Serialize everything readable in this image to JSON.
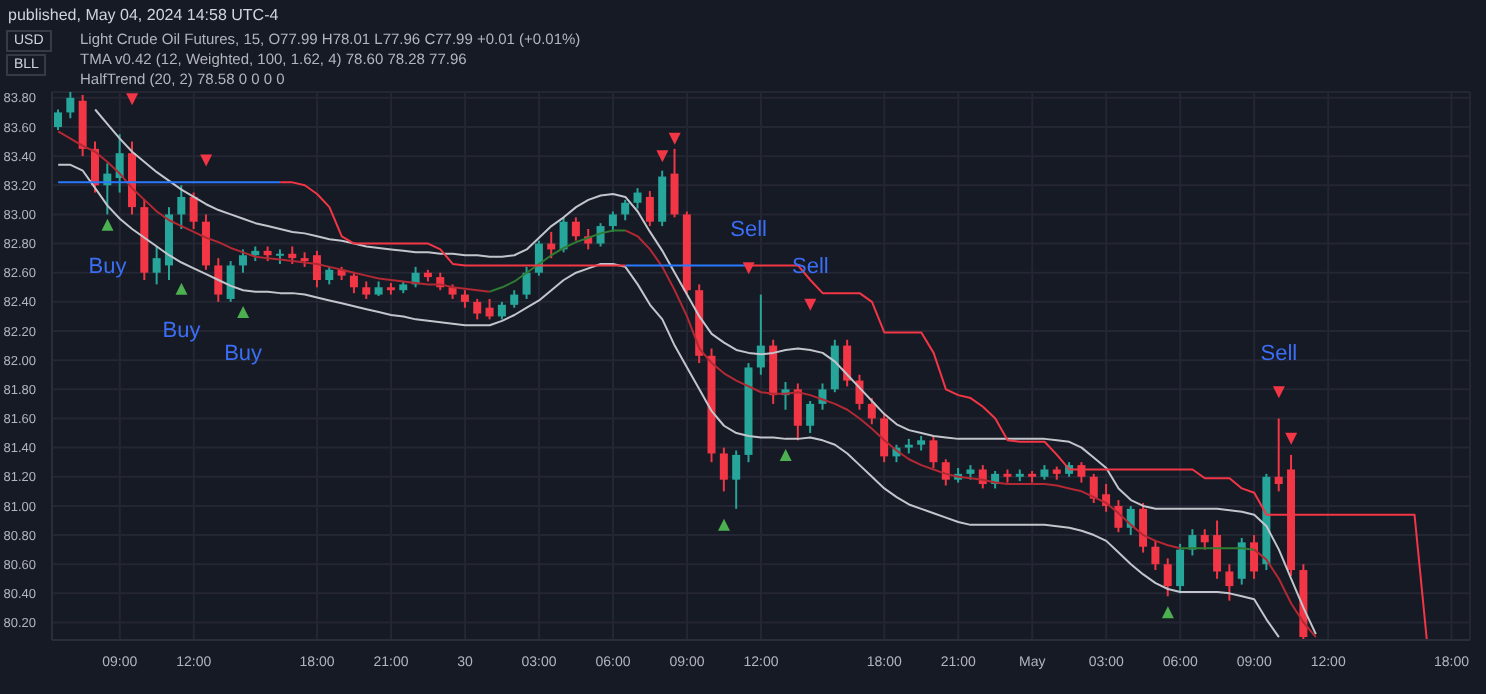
{
  "chart_data": {
    "type": "candlestick",
    "title": "Light Crude Oil Futures, 15, O77.99 H78.01 L77.96 C77.99 +0.01 (+0.01%)",
    "annotations": [
      "published, May 04, 2024 14:58 UTC-4",
      "USD",
      "BLL",
      "TMA v0.42 (12, Weighted, 100, 1.62, 4) 78.60 78.28 77.96",
      "HalfTrend (20, 2) 78.58 0 0 0 0"
    ],
    "categories": [
      null,
      null,
      null,
      null,
      null,
      "09:00",
      null,
      null,
      null,
      null,
      null,
      "12:00",
      null,
      null,
      null,
      null,
      null,
      null,
      null,
      null,
      null,
      "18:00",
      null,
      null,
      null,
      null,
      null,
      "21:00",
      null,
      null,
      null,
      null,
      null,
      "30",
      null,
      null,
      null,
      null,
      null,
      "03:00",
      null,
      null,
      null,
      null,
      null,
      "06:00",
      null,
      null,
      null,
      null,
      null,
      "09:00",
      null,
      null,
      null,
      null,
      null,
      "12:00",
      null,
      null,
      null,
      null,
      null,
      null,
      null,
      null,
      null,
      "18:00",
      null,
      null,
      null,
      null,
      null,
      "21:00",
      null,
      null,
      null,
      null,
      null,
      "May",
      null,
      null,
      null,
      null,
      null,
      "03:00",
      null,
      null,
      null,
      null,
      null,
      "06:00",
      null,
      null,
      null,
      null,
      null,
      "09:00",
      null,
      null,
      null,
      null,
      null,
      "12:00",
      null,
      null,
      null,
      null,
      null,
      null,
      null,
      null,
      null,
      "18:00",
      null
    ],
    "ohlc": [
      [
        83.6,
        83.72,
        83.58,
        83.7
      ],
      [
        83.7,
        83.84,
        83.66,
        83.8
      ],
      [
        83.78,
        83.82,
        83.4,
        83.45
      ],
      [
        83.45,
        83.5,
        83.15,
        83.2
      ],
      [
        83.2,
        83.35,
        83.0,
        83.28
      ],
      [
        83.25,
        83.55,
        83.15,
        83.42
      ],
      [
        83.42,
        83.5,
        83.0,
        83.05
      ],
      [
        83.05,
        83.1,
        82.55,
        82.6
      ],
      [
        82.6,
        82.78,
        82.52,
        82.7
      ],
      [
        82.65,
        83.05,
        82.55,
        83.0
      ],
      [
        83.0,
        83.2,
        82.9,
        83.12
      ],
      [
        83.12,
        83.15,
        82.9,
        82.95
      ],
      [
        82.95,
        83.0,
        82.62,
        82.65
      ],
      [
        82.65,
        82.7,
        82.4,
        82.45
      ],
      [
        82.42,
        82.68,
        82.4,
        82.65
      ],
      [
        82.65,
        82.76,
        82.6,
        82.72
      ],
      [
        82.72,
        82.78,
        82.68,
        82.75
      ],
      [
        82.75,
        82.78,
        82.68,
        82.72
      ],
      [
        82.72,
        82.76,
        82.66,
        82.73
      ],
      [
        82.73,
        82.78,
        82.66,
        82.7
      ],
      [
        82.7,
        82.74,
        82.64,
        82.68
      ],
      [
        82.72,
        82.75,
        82.5,
        82.55
      ],
      [
        82.55,
        82.64,
        82.52,
        82.62
      ],
      [
        82.62,
        82.64,
        82.55,
        82.58
      ],
      [
        82.58,
        82.6,
        82.46,
        82.5
      ],
      [
        82.5,
        82.54,
        82.42,
        82.45
      ],
      [
        82.45,
        82.54,
        82.44,
        82.5
      ],
      [
        82.5,
        82.53,
        82.45,
        82.48
      ],
      [
        82.48,
        82.54,
        82.46,
        82.52
      ],
      [
        82.52,
        82.64,
        82.5,
        82.6
      ],
      [
        82.6,
        82.62,
        82.54,
        82.57
      ],
      [
        82.57,
        82.6,
        82.48,
        82.5
      ],
      [
        82.5,
        82.52,
        82.42,
        82.45
      ],
      [
        82.45,
        82.48,
        82.36,
        82.4
      ],
      [
        82.4,
        82.42,
        82.28,
        82.32
      ],
      [
        82.36,
        82.42,
        82.28,
        82.3
      ],
      [
        82.3,
        82.4,
        82.28,
        82.38
      ],
      [
        82.38,
        82.48,
        82.36,
        82.45
      ],
      [
        82.45,
        82.64,
        82.42,
        82.6
      ],
      [
        82.6,
        82.82,
        82.58,
        82.8
      ],
      [
        82.8,
        82.88,
        82.7,
        82.76
      ],
      [
        82.76,
        82.98,
        82.74,
        82.95
      ],
      [
        82.95,
        82.98,
        82.82,
        82.85
      ],
      [
        82.85,
        82.9,
        82.76,
        82.8
      ],
      [
        82.8,
        82.94,
        82.78,
        82.92
      ],
      [
        82.92,
        83.02,
        82.88,
        83.0
      ],
      [
        83.0,
        83.1,
        82.96,
        83.08
      ],
      [
        83.08,
        83.18,
        83.04,
        83.15
      ],
      [
        83.12,
        83.16,
        82.92,
        82.95
      ],
      [
        82.95,
        83.3,
        82.92,
        83.26
      ],
      [
        83.28,
        83.45,
        82.98,
        83.0
      ],
      [
        83.0,
        83.02,
        82.45,
        82.48
      ],
      [
        82.48,
        82.52,
        81.98,
        82.03
      ],
      [
        82.03,
        82.08,
        81.3,
        81.36
      ],
      [
        81.36,
        81.4,
        81.1,
        81.18
      ],
      [
        81.18,
        81.38,
        80.98,
        81.35
      ],
      [
        81.35,
        81.98,
        81.3,
        81.95
      ],
      [
        81.95,
        82.45,
        81.9,
        82.1
      ],
      [
        82.1,
        82.14,
        81.7,
        81.76
      ],
      [
        81.76,
        81.85,
        81.66,
        81.8
      ],
      [
        81.8,
        81.84,
        81.45,
        81.55
      ],
      [
        81.55,
        81.72,
        81.5,
        81.7
      ],
      [
        81.7,
        81.84,
        81.66,
        81.8
      ],
      [
        81.8,
        82.14,
        81.78,
        82.1
      ],
      [
        82.1,
        82.14,
        81.82,
        81.86
      ],
      [
        81.86,
        81.9,
        81.66,
        81.7
      ],
      [
        81.7,
        81.74,
        81.56,
        81.6
      ],
      [
        81.6,
        81.64,
        81.3,
        81.34
      ],
      [
        81.34,
        81.42,
        81.3,
        81.4
      ],
      [
        81.4,
        81.46,
        81.36,
        81.42
      ],
      [
        81.42,
        81.48,
        81.38,
        81.45
      ],
      [
        81.45,
        81.48,
        81.26,
        81.3
      ],
      [
        81.3,
        81.32,
        81.14,
        81.18
      ],
      [
        81.18,
        81.26,
        81.16,
        81.22
      ],
      [
        81.22,
        81.28,
        81.18,
        81.25
      ],
      [
        81.25,
        81.28,
        81.12,
        81.15
      ],
      [
        81.15,
        81.24,
        81.12,
        81.22
      ],
      [
        81.22,
        81.25,
        81.16,
        81.2
      ],
      [
        81.2,
        81.25,
        81.17,
        81.22
      ],
      [
        81.22,
        81.24,
        81.16,
        81.2
      ],
      [
        81.2,
        81.28,
        81.18,
        81.25
      ],
      [
        81.25,
        81.27,
        81.18,
        81.22
      ],
      [
        81.22,
        81.3,
        81.2,
        81.28
      ],
      [
        81.28,
        81.3,
        81.16,
        81.2
      ],
      [
        81.2,
        81.22,
        81.02,
        81.05
      ],
      [
        81.08,
        81.15,
        80.96,
        81.0
      ],
      [
        81.0,
        81.04,
        80.82,
        80.85
      ],
      [
        80.85,
        81.0,
        80.8,
        80.98
      ],
      [
        80.98,
        81.02,
        80.68,
        80.72
      ],
      [
        80.72,
        80.76,
        80.56,
        80.6
      ],
      [
        80.6,
        80.64,
        80.38,
        80.45
      ],
      [
        80.45,
        80.74,
        80.4,
        80.7
      ],
      [
        80.7,
        80.84,
        80.66,
        80.8
      ],
      [
        80.8,
        80.84,
        80.7,
        80.75
      ],
      [
        80.8,
        80.9,
        80.5,
        80.55
      ],
      [
        80.55,
        80.6,
        80.35,
        80.45
      ],
      [
        80.5,
        80.78,
        80.46,
        80.75
      ],
      [
        80.75,
        80.8,
        80.5,
        80.55
      ],
      [
        80.6,
        81.22,
        80.56,
        81.2
      ],
      [
        81.2,
        81.6,
        81.1,
        81.15
      ],
      [
        81.25,
        81.35,
        80.52,
        80.56
      ],
      [
        80.56,
        80.6,
        80.08,
        80.1
      ],
      null,
      null,
      null,
      null,
      null,
      null,
      null,
      null,
      null,
      null,
      null,
      null,
      null
    ],
    "ylim": [
      80.08,
      83.84
    ],
    "yticks": [
      {
        "value": 80.2,
        "label": "80.20"
      },
      {
        "value": 80.4,
        "label": "80.40"
      },
      {
        "value": 80.6,
        "label": "80.60"
      },
      {
        "value": 80.8,
        "label": "80.80"
      },
      {
        "value": 81.0,
        "label": "81.00"
      },
      {
        "value": 81.2,
        "label": "81.20"
      },
      {
        "value": 81.4,
        "label": "81.40"
      },
      {
        "value": 81.6,
        "label": "81.60"
      },
      {
        "value": 81.8,
        "label": "81.80"
      },
      {
        "value": 82.0,
        "label": "82.00"
      },
      {
        "value": 82.2,
        "label": "82.20"
      },
      {
        "value": 82.4,
        "label": "82.40"
      },
      {
        "value": 82.6,
        "label": "82.60"
      },
      {
        "value": 82.8,
        "label": "82.80"
      },
      {
        "value": 83.0,
        "label": "83.00"
      },
      {
        "value": 83.2,
        "label": "83.20"
      },
      {
        "value": 83.4,
        "label": "83.40"
      },
      {
        "value": 83.6,
        "label": "83.60"
      },
      {
        "value": 83.8,
        "label": "83.80"
      }
    ],
    "grid": true,
    "series": [
      {
        "type": "line",
        "color": "#b22833",
        "values": [
          83.57,
          83.52,
          83.47,
          83.43,
          83.36,
          83.28,
          83.18,
          83.1,
          83.02,
          82.96,
          82.92,
          82.88,
          82.84,
          82.81,
          82.77,
          82.74,
          82.71,
          82.7,
          82.69,
          82.68,
          82.67,
          82.66,
          82.64,
          82.62,
          82.6,
          82.58,
          82.56,
          82.55,
          82.54,
          82.53,
          82.52,
          82.52,
          82.5,
          82.49,
          82.48,
          82.47,
          null,
          null,
          null,
          null,
          null,
          null,
          null,
          null,
          null,
          null,
          82.89,
          82.85,
          82.76,
          82.64,
          82.48,
          82.3,
          82.08,
          81.98,
          81.91,
          81.86,
          81.82,
          81.78,
          81.77,
          81.77,
          81.78,
          81.76,
          81.73,
          81.7,
          81.66,
          81.6,
          81.53,
          81.45,
          81.38,
          81.32,
          81.28,
          81.25,
          81.22,
          81.2,
          81.19,
          81.18,
          81.16,
          81.15,
          81.15,
          81.15,
          81.15,
          81.14,
          81.12,
          81.1,
          81.06,
          81.02,
          80.95,
          80.87,
          80.8,
          80.76,
          80.73,
          80.71,
          null,
          null,
          null,
          null,
          null,
          80.7,
          80.63,
          80.5,
          80.33,
          80.2,
          80.1,
          null,
          null,
          null,
          null,
          null,
          null,
          null,
          null,
          null,
          null,
          null,
          null
        ]
      },
      {
        "type": "line",
        "color": "#2e7d32",
        "values": [
          null,
          null,
          null,
          null,
          null,
          null,
          null,
          null,
          null,
          null,
          null,
          null,
          null,
          null,
          null,
          null,
          null,
          null,
          null,
          null,
          null,
          null,
          null,
          null,
          null,
          null,
          null,
          null,
          null,
          null,
          null,
          null,
          null,
          null,
          null,
          82.47,
          82.5,
          82.54,
          82.6,
          82.66,
          82.72,
          82.77,
          82.81,
          82.84,
          82.87,
          82.89,
          82.89,
          null,
          null,
          null,
          null,
          null,
          null,
          null,
          null,
          null,
          null,
          null,
          null,
          null,
          null,
          null,
          null,
          null,
          null,
          null,
          null,
          null,
          null,
          null,
          null,
          null,
          null,
          null,
          null,
          null,
          null,
          null,
          null,
          null,
          null,
          null,
          null,
          null,
          null,
          null,
          null,
          null,
          null,
          null,
          null,
          80.71,
          80.71,
          80.71,
          80.71,
          80.71,
          80.71,
          80.7,
          null,
          null,
          null,
          null,
          null,
          null,
          null,
          null,
          null,
          null,
          null,
          null,
          null,
          null,
          null,
          null,
          null
        ]
      },
      {
        "type": "line",
        "color": "#c3c5cc",
        "values": [
          null,
          null,
          null,
          83.72,
          83.62,
          83.52,
          83.43,
          83.36,
          83.29,
          83.23,
          83.17,
          83.12,
          83.07,
          83.03,
          83.0,
          82.97,
          82.94,
          82.92,
          82.9,
          82.88,
          82.87,
          82.85,
          82.83,
          82.82,
          82.8,
          82.78,
          82.77,
          82.76,
          82.75,
          82.74,
          82.74,
          82.73,
          82.73,
          82.72,
          82.72,
          82.71,
          82.71,
          82.72,
          82.76,
          82.84,
          82.92,
          82.98,
          83.05,
          83.1,
          83.13,
          83.14,
          83.12,
          83.02,
          82.88,
          82.75,
          82.6,
          82.45,
          82.3,
          82.18,
          82.12,
          82.07,
          82.05,
          82.04,
          82.05,
          82.07,
          82.08,
          82.07,
          82.05,
          81.99,
          81.9,
          81.81,
          81.72,
          81.63,
          81.56,
          81.52,
          81.5,
          81.48,
          81.47,
          81.46,
          81.46,
          81.46,
          81.46,
          81.46,
          81.46,
          81.46,
          81.46,
          81.45,
          81.44,
          81.4,
          81.33,
          81.26,
          81.12,
          81.04,
          81.0,
          80.98,
          80.98,
          80.98,
          80.98,
          80.98,
          80.98,
          80.97,
          80.96,
          80.94,
          80.86,
          80.7,
          80.5,
          80.3,
          80.12,
          null,
          null,
          null,
          null,
          null,
          null,
          null,
          null,
          null,
          null,
          null,
          null
        ]
      },
      {
        "type": "line",
        "color": "#c3c5cc",
        "values": [
          83.34,
          83.34,
          83.3,
          83.18,
          83.06,
          82.97,
          82.9,
          82.84,
          82.78,
          82.72,
          82.67,
          82.63,
          82.59,
          82.55,
          82.51,
          82.48,
          82.47,
          82.47,
          82.46,
          82.46,
          82.45,
          82.43,
          82.41,
          82.39,
          82.37,
          82.35,
          82.33,
          82.31,
          82.3,
          82.28,
          82.27,
          82.26,
          82.25,
          82.24,
          82.24,
          82.24,
          82.27,
          82.31,
          82.36,
          82.41,
          82.48,
          82.55,
          82.6,
          82.63,
          82.66,
          82.66,
          82.64,
          82.52,
          82.38,
          82.28,
          82.1,
          81.95,
          81.8,
          81.65,
          81.55,
          81.5,
          81.48,
          81.47,
          81.47,
          81.46,
          81.46,
          81.47,
          81.45,
          81.42,
          81.36,
          81.28,
          81.2,
          81.12,
          81.06,
          81.01,
          80.98,
          80.95,
          80.92,
          80.89,
          80.87,
          80.87,
          80.87,
          80.87,
          80.87,
          80.87,
          80.87,
          80.86,
          80.85,
          80.83,
          80.8,
          80.76,
          80.68,
          80.6,
          80.53,
          80.47,
          80.43,
          80.41,
          80.41,
          80.41,
          80.41,
          80.4,
          80.38,
          80.36,
          80.22,
          80.1,
          null,
          null,
          null,
          null,
          null,
          null,
          null,
          null,
          null,
          null,
          null,
          null,
          null,
          null,
          null
        ]
      },
      {
        "type": "line",
        "color": "#2979ff",
        "values": [
          83.22,
          83.22,
          83.22,
          83.22,
          83.22,
          83.22,
          83.22,
          83.22,
          83.22,
          83.22,
          83.22,
          83.22,
          83.22,
          83.22,
          83.22,
          83.22,
          83.22,
          83.22,
          83.22,
          null,
          null,
          null,
          null,
          null,
          null,
          null,
          null,
          null,
          null,
          null,
          null,
          null,
          null,
          null,
          null,
          null,
          null,
          null,
          null,
          null,
          null,
          null,
          null,
          null,
          null,
          null,
          82.65,
          82.65,
          82.65,
          82.65,
          82.65,
          82.65,
          82.65,
          82.65,
          82.65,
          82.65,
          82.65,
          null,
          null,
          null,
          null,
          null,
          null,
          null,
          null,
          null,
          null,
          null,
          null,
          null,
          null,
          null,
          null,
          null,
          null,
          null,
          null,
          null,
          null,
          null,
          null,
          null,
          null,
          null,
          null,
          null,
          null,
          null,
          null,
          null,
          null,
          null,
          null,
          null,
          null,
          null,
          null,
          null,
          null,
          null,
          null,
          null,
          null,
          null,
          null,
          null,
          null,
          null,
          null,
          null,
          null,
          null,
          null,
          null,
          null
        ]
      },
      {
        "type": "line",
        "color": "#f23645",
        "values": [
          null,
          null,
          null,
          null,
          null,
          null,
          null,
          null,
          null,
          null,
          null,
          null,
          null,
          null,
          null,
          null,
          null,
          null,
          83.22,
          83.22,
          83.2,
          83.14,
          83.05,
          82.85,
          82.8,
          82.8,
          82.8,
          82.8,
          82.8,
          82.8,
          82.8,
          82.76,
          82.66,
          82.65,
          82.65,
          82.65,
          82.65,
          82.65,
          82.65,
          82.65,
          82.65,
          82.65,
          82.65,
          82.65,
          82.65,
          82.65,
          82.65,
          null,
          null,
          null,
          null,
          null,
          null,
          null,
          null,
          null,
          82.65,
          82.65,
          82.65,
          82.65,
          82.65,
          82.55,
          82.46,
          82.46,
          82.46,
          82.46,
          82.4,
          82.19,
          82.19,
          82.19,
          82.19,
          82.05,
          81.8,
          81.76,
          81.74,
          81.68,
          81.6,
          81.45,
          81.44,
          81.44,
          81.44,
          81.35,
          81.25,
          81.25,
          81.25,
          81.25,
          81.25,
          81.25,
          81.25,
          81.25,
          81.25,
          81.25,
          81.25,
          81.19,
          81.19,
          81.19,
          81.12,
          81.09,
          80.94,
          80.94,
          80.94,
          80.94,
          80.94,
          80.94,
          80.94,
          80.94,
          80.94,
          80.94,
          80.94,
          80.94,
          80.94,
          80.08,
          null,
          null,
          null
        ]
      },
      {
        "type": "scatter",
        "color": "#4caf50",
        "marker": "triangle",
        "values": [
          null,
          null,
          null,
          null,
          82.93,
          null,
          null,
          null,
          null,
          null,
          82.49,
          null,
          null,
          null,
          null,
          82.33,
          null,
          null,
          null,
          null,
          null,
          null,
          null,
          null,
          null,
          null,
          null,
          null,
          null,
          null,
          null,
          null,
          null,
          null,
          null,
          null,
          null,
          null,
          null,
          null,
          null,
          null,
          null,
          null,
          null,
          null,
          null,
          null,
          null,
          null,
          null,
          null,
          null,
          null,
          80.87,
          null,
          null,
          null,
          null,
          81.35,
          null,
          null,
          null,
          null,
          null,
          null,
          null,
          null,
          null,
          null,
          null,
          null,
          null,
          null,
          null,
          null,
          null,
          null,
          null,
          null,
          null,
          null,
          null,
          null,
          null,
          null,
          null,
          null,
          null,
          null,
          80.27,
          null,
          null,
          null,
          null,
          null,
          null,
          null,
          null,
          null,
          null,
          null,
          null,
          null,
          null,
          null,
          null,
          null,
          null,
          null,
          null,
          null,
          null,
          null,
          null
        ],
        "value_labels": [
          null,
          null,
          null,
          null,
          "Buy",
          null,
          null,
          null,
          null,
          null,
          "Buy",
          null,
          null,
          null,
          null,
          "Buy",
          null,
          null,
          null,
          null,
          null,
          null,
          null,
          null,
          null,
          null,
          null,
          null,
          null,
          null,
          null,
          null,
          null,
          null,
          null,
          null,
          null,
          null,
          null,
          null,
          null,
          null,
          null,
          null,
          null,
          null,
          null,
          null,
          null,
          null,
          null,
          null,
          null,
          null,
          null,
          null,
          null,
          null,
          null,
          null,
          null,
          null,
          null,
          null,
          null,
          null,
          null,
          null,
          null,
          null,
          null,
          null,
          null,
          null,
          null,
          null,
          null,
          null,
          null,
          null,
          null,
          null,
          null,
          null,
          null,
          null,
          null,
          null,
          null,
          null,
          null,
          null,
          null,
          null,
          null,
          null,
          null,
          null,
          null,
          null,
          null,
          null,
          null,
          null,
          null,
          null,
          null,
          null,
          null,
          null,
          null,
          null,
          null,
          null,
          null
        ]
      },
      {
        "type": "scatter",
        "color": "#f23645",
        "marker": "triangle",
        "values": [
          null,
          null,
          null,
          null,
          null,
          null,
          83.79,
          null,
          null,
          null,
          null,
          null,
          83.37,
          null,
          null,
          null,
          null,
          null,
          null,
          null,
          null,
          null,
          null,
          null,
          null,
          null,
          null,
          null,
          null,
          null,
          null,
          null,
          null,
          null,
          null,
          null,
          null,
          null,
          null,
          null,
          null,
          null,
          null,
          null,
          null,
          null,
          null,
          null,
          null,
          83.4,
          83.52,
          null,
          null,
          null,
          null,
          null,
          82.63,
          null,
          null,
          null,
          null,
          82.38,
          null,
          null,
          null,
          null,
          null,
          null,
          null,
          null,
          null,
          null,
          null,
          null,
          null,
          null,
          null,
          null,
          null,
          null,
          null,
          null,
          null,
          null,
          null,
          null,
          null,
          null,
          null,
          null,
          null,
          null,
          null,
          null,
          null,
          null,
          null,
          null,
          null,
          81.78,
          81.46,
          null,
          null,
          null,
          null,
          null,
          null,
          null,
          null,
          null,
          null,
          null,
          null,
          null,
          null
        ],
        "value_labels": [
          null,
          null,
          null,
          null,
          null,
          null,
          null,
          null,
          null,
          null,
          null,
          null,
          null,
          null,
          null,
          null,
          null,
          null,
          null,
          null,
          null,
          null,
          null,
          null,
          null,
          null,
          null,
          null,
          null,
          null,
          null,
          null,
          null,
          null,
          null,
          null,
          null,
          null,
          null,
          null,
          null,
          null,
          null,
          null,
          null,
          null,
          null,
          null,
          null,
          null,
          null,
          null,
          null,
          null,
          null,
          null,
          "Sell",
          null,
          null,
          null,
          null,
          "Sell",
          null,
          null,
          null,
          null,
          null,
          null,
          null,
          null,
          null,
          null,
          null,
          null,
          null,
          null,
          null,
          null,
          null,
          null,
          null,
          null,
          null,
          null,
          null,
          null,
          null,
          null,
          null,
          null,
          null,
          null,
          null,
          null,
          null,
          null,
          null,
          null,
          null,
          "Sell",
          null,
          null,
          null,
          null,
          null,
          null,
          null,
          null,
          null,
          null,
          null,
          null,
          null,
          null,
          null
        ]
      }
    ]
  }
}
